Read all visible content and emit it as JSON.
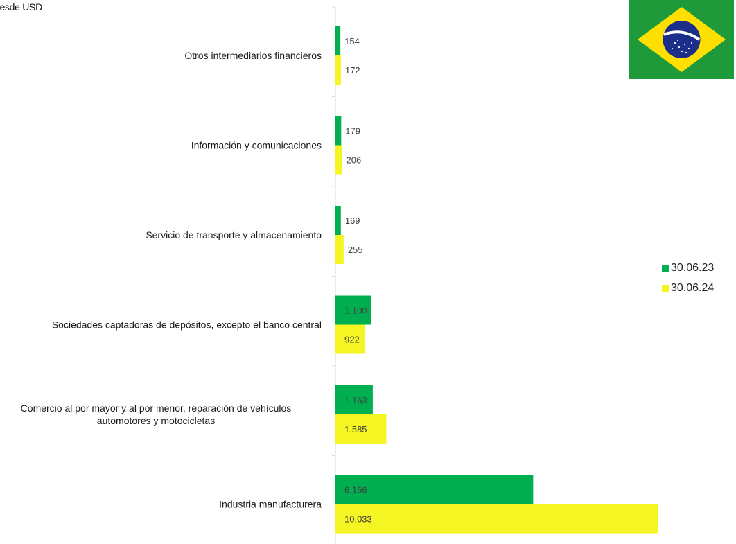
{
  "chart_data": {
    "type": "bar",
    "orientation": "horizontal",
    "unit_label": "nesde USD",
    "categories": [
      "Otros intermediarios financieros",
      "Información y comunicaciones",
      "Servicio de transporte y almacenamiento",
      "Sociedades captadoras de depósitos, excepto el banco central",
      [
        "Comercio al por mayor y al por menor, reparación de vehículos",
        "automotores y motocicletas"
      ],
      "Industria manufacturera"
    ],
    "series": [
      {
        "name": "30.06.23",
        "color": "#00b050",
        "values": [
          154,
          179,
          169,
          1100,
          1163,
          6156
        ],
        "labels": [
          "154",
          "179",
          "169",
          "1.100",
          "1.163",
          "6.156"
        ]
      },
      {
        "name": "30.06.24",
        "color": "#f5f523",
        "values": [
          172,
          206,
          255,
          922,
          1585,
          10033
        ],
        "labels": [
          "172",
          "206",
          "255",
          "922",
          "1.585",
          "10.033"
        ]
      }
    ],
    "xlim": [
      0,
      10500
    ],
    "grid": false,
    "legend_position": "right"
  },
  "decorations": {
    "flag": "brazil-flag",
    "flag_colors": {
      "green": "#1e9a3a",
      "yellow": "#fedf00",
      "blue": "#1b2f8a",
      "white": "#ffffff"
    }
  }
}
